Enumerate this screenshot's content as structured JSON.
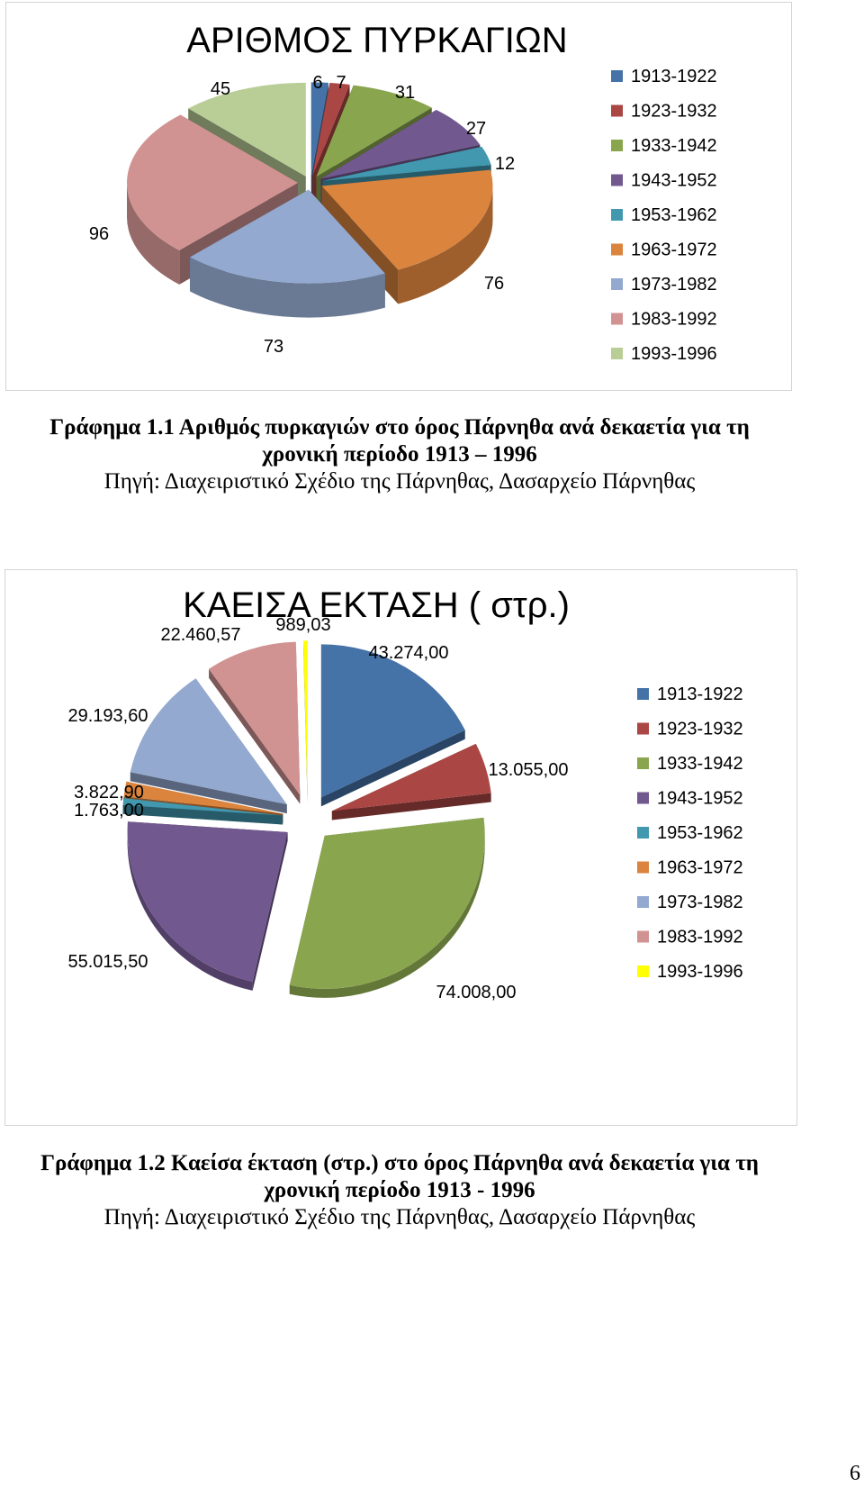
{
  "page_number": "6",
  "figures": [
    {
      "caption_line1": "Γράφημα 1.1 Αριθμός πυρκαγιών στο όρος Πάρνηθα ανά  δεκαετία για τη",
      "caption_line2": "χρονική περίοδο 1913 – 1996",
      "source": "Πηγή: Διαχειριστικό Σχέδιο της Πάρνηθας, Δασαρχείο Πάρνηθας"
    },
    {
      "caption_line1": "Γράφημα 1.2 Καείσα έκταση (στρ.) στο όρος Πάρνηθα ανά  δεκαετία για τη",
      "caption_line2": "χρονική περίοδο 1913 - 1996",
      "source": "Πηγή: Διαχειριστικό Σχέδιο της Πάρνηθας, Δασαρχείο Πάρνηθας"
    }
  ],
  "chart_data": [
    {
      "type": "pie",
      "style": "3d-exploded",
      "title": "ΑΡΙΘΜΟΣ ΠΥΡΚΑΓΙΩΝ",
      "legend_position": "right",
      "categories": [
        "1913-1922",
        "1923-1932",
        "1933-1942",
        "1943-1952",
        "1953-1962",
        "1963-1972",
        "1973-1982",
        "1983-1992",
        "1993-1996"
      ],
      "values": [
        6,
        7,
        31,
        27,
        12,
        76,
        73,
        96,
        45
      ],
      "labels": [
        "6",
        "7",
        "31",
        "27",
        "12",
        "76",
        "73",
        "96",
        "45"
      ],
      "colors": [
        "#4572A7",
        "#AA4643",
        "#89A54E",
        "#71588F",
        "#4198AF",
        "#DB843D",
        "#93A9CF",
        "#D19392",
        "#B9CD96"
      ]
    },
    {
      "type": "pie",
      "style": "3d-exploded",
      "title": "ΚΑΕΙΣΑ ΕΚΤΑΣΗ ( στρ.)",
      "legend_position": "right",
      "categories": [
        "1913-1922",
        "1923-1932",
        "1933-1942",
        "1943-1952",
        "1953-1962",
        "1963-1972",
        "1973-1982",
        "1983-1992",
        "1993-1996"
      ],
      "values": [
        43274.0,
        13055.0,
        74008.0,
        55015.5,
        1763.0,
        3822.9,
        29193.6,
        22460.57,
        989.03
      ],
      "labels": [
        "43.274,00",
        "13.055,00",
        "74.008,00",
        "55.015,50",
        "1.763,00",
        "3.822,90",
        "29.193,60",
        "22.460,57",
        "989,03"
      ],
      "colors": [
        "#4572A7",
        "#AA4643",
        "#89A54E",
        "#71588F",
        "#4198AF",
        "#DB843D",
        "#93A9CF",
        "#D19392",
        "#FFFF00"
      ]
    }
  ]
}
